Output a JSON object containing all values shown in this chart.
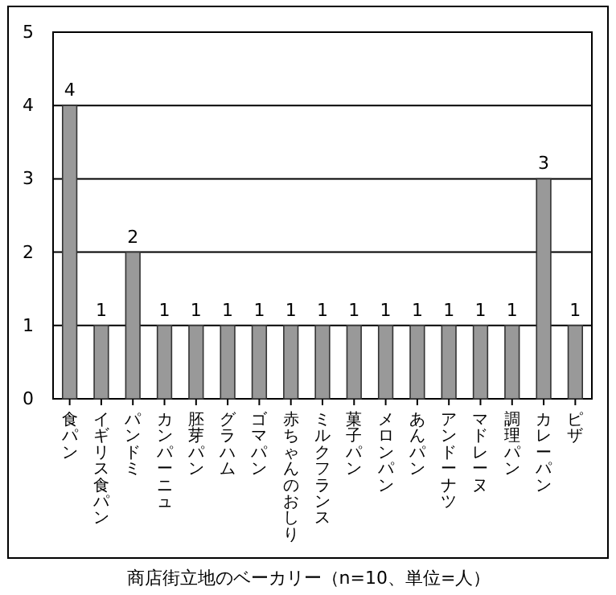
{
  "chart_data": {
    "type": "bar",
    "title": "商店街立地のベーカリー（n=10、単位=人）",
    "categories": [
      "食パン",
      "イギリス食パン",
      "パンドミ",
      "カンパーニュ",
      "胚芽パン",
      "グラハム",
      "ゴマパン",
      "赤ちゃんのおしり",
      "ミルクフランス",
      "菓子パン",
      "メロンパン",
      "あんパン",
      "アンドーナツ",
      "マドレーヌ",
      "調理パン",
      "カレーパン",
      "ピザ"
    ],
    "values": [
      4,
      1,
      2,
      1,
      1,
      1,
      1,
      1,
      1,
      1,
      1,
      1,
      1,
      1,
      1,
      3,
      1
    ],
    "color": "#999999",
    "ylim": [
      0,
      5
    ],
    "yticks": [
      0,
      1,
      2,
      3,
      4,
      5
    ],
    "grid": "y",
    "data_labels": true
  }
}
